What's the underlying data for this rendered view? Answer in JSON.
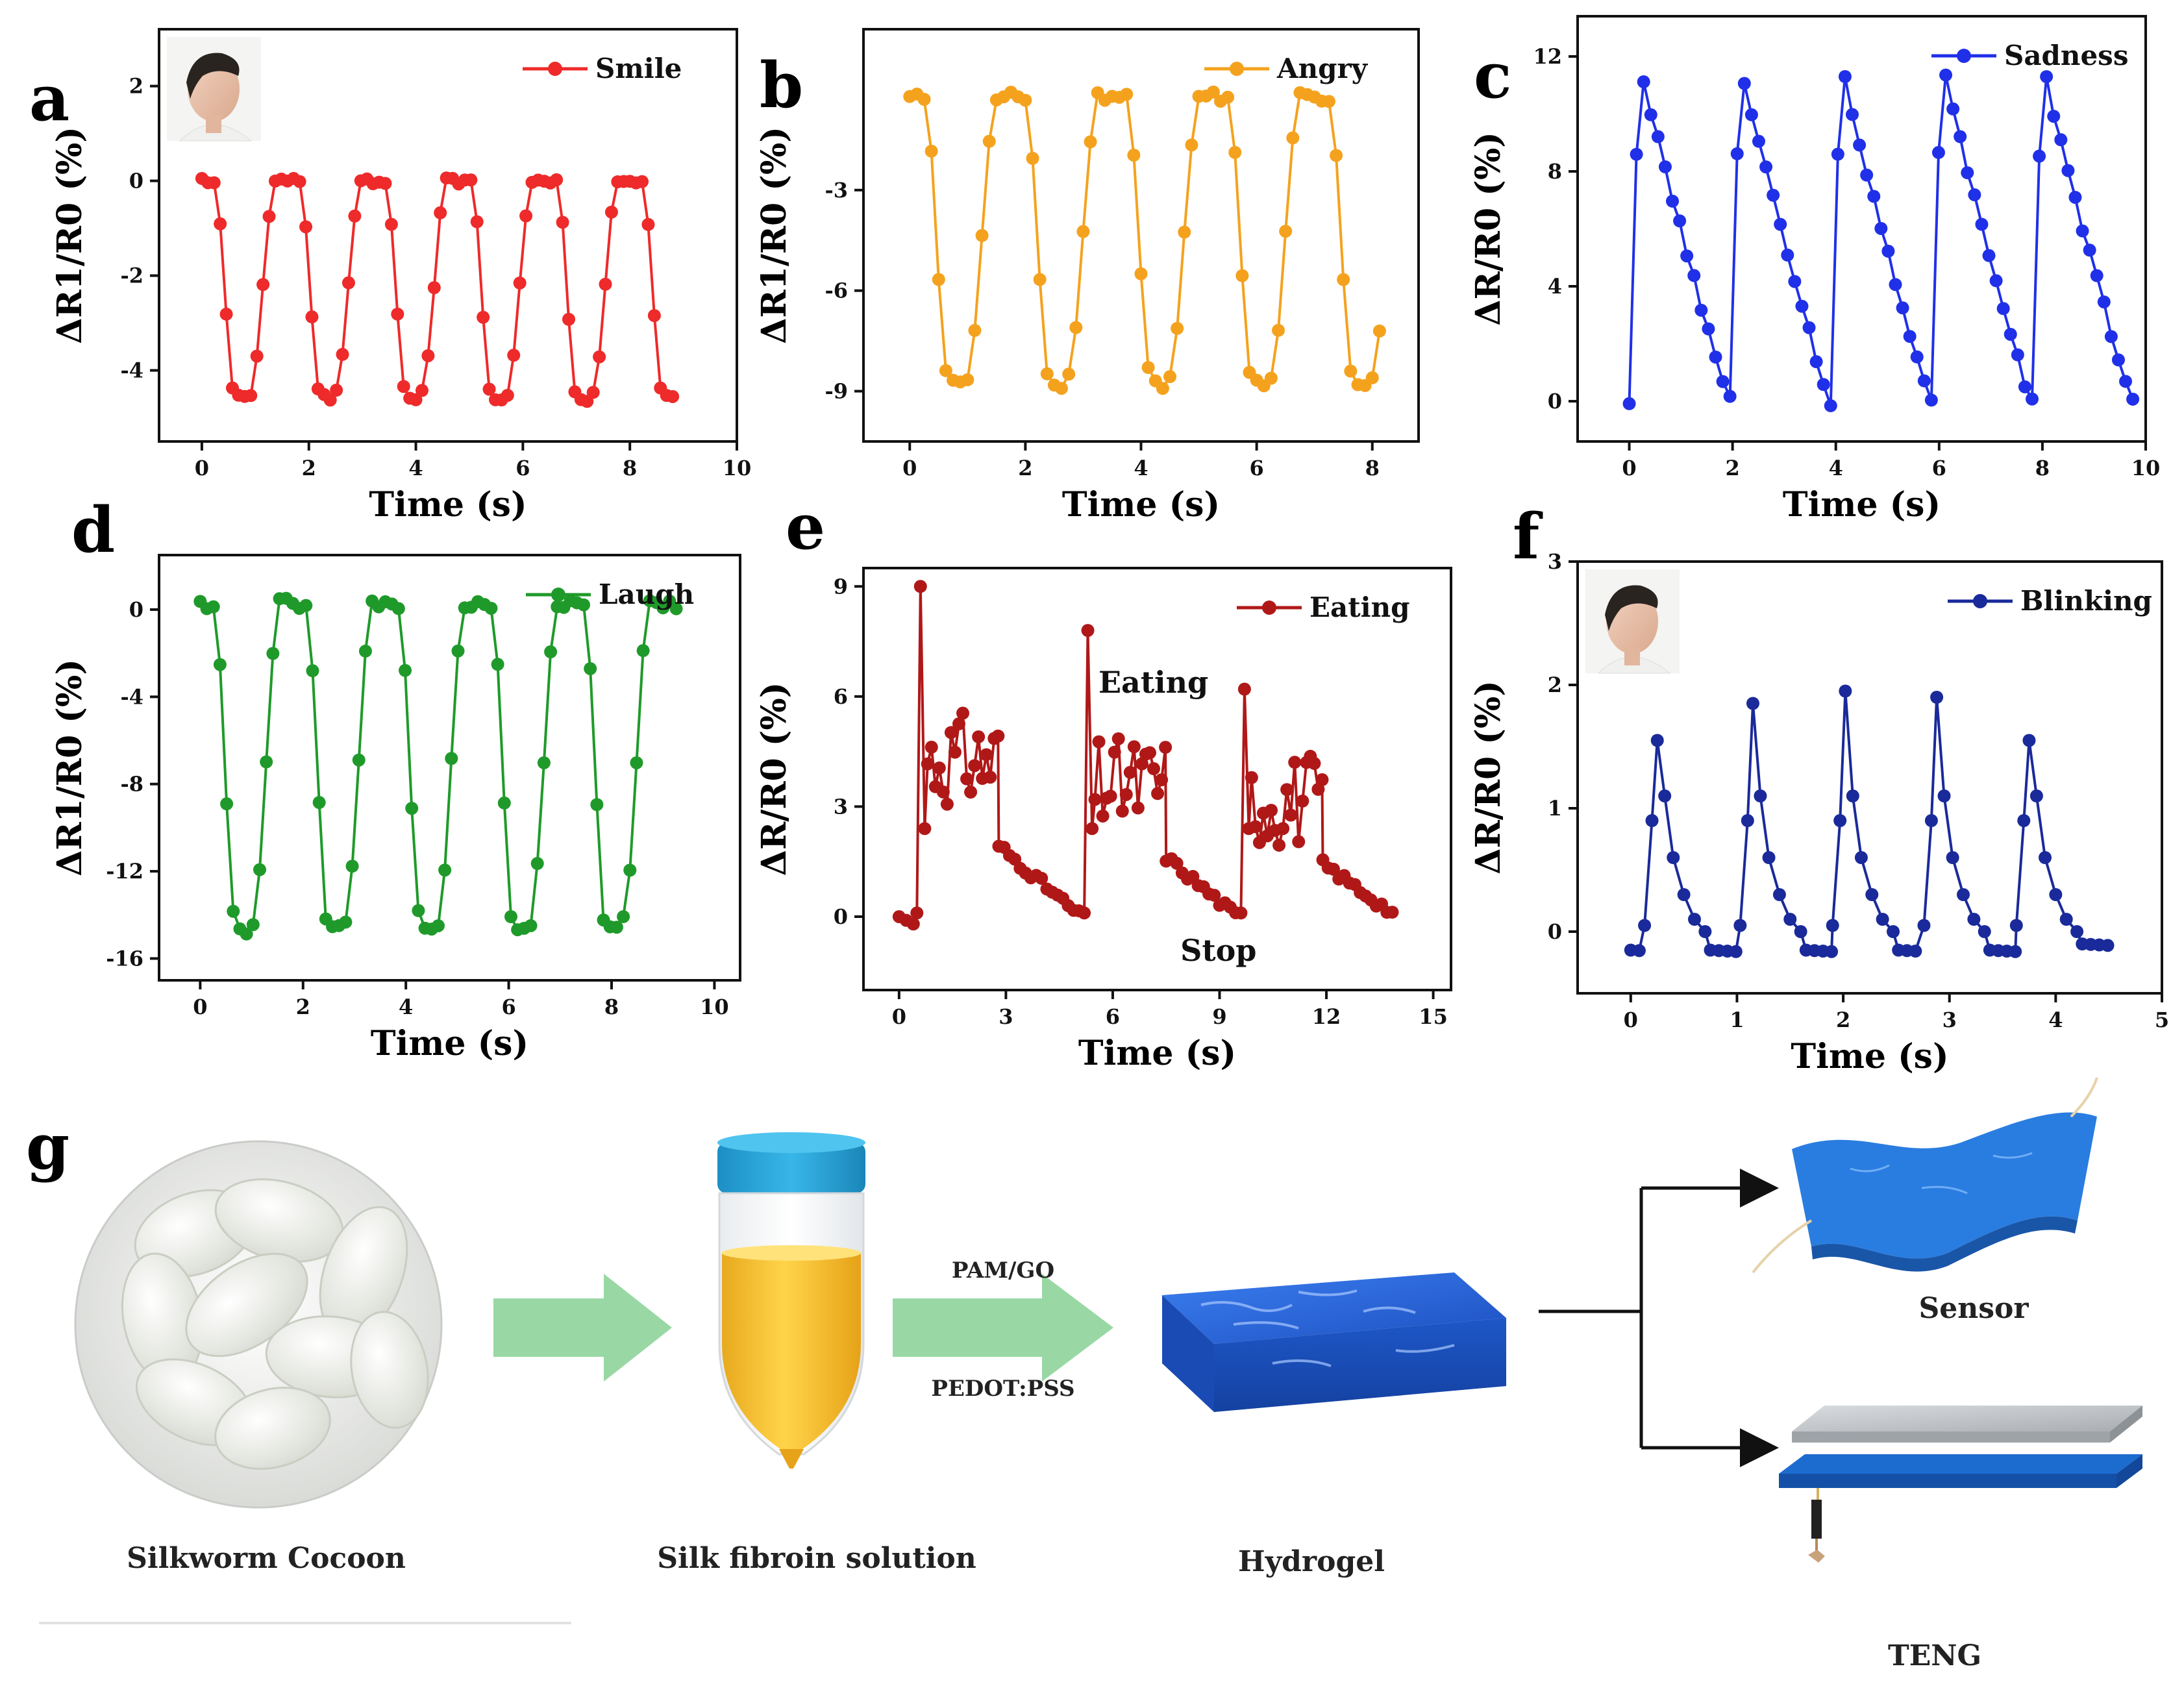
{
  "figure": {
    "panel_g_letter": "g",
    "schematic": {
      "cocoon_label": "Silkworm Cocoon",
      "solution_label": "Silk fibroin solution",
      "hydrogel_label": "Hydrogel",
      "additive_top": "PAM/GO",
      "additive_bottom": "PEDOT:PSS",
      "sensor_label": "Sensor",
      "teng_label": "TENG"
    },
    "colors": {
      "arrow_green": "#8ed49a",
      "cap_blue": "#2aa3d8",
      "solution_yellow": "#f2c230",
      "hydrogel_blue": "#1f5fcf",
      "teng_plate": "#bfc3c7"
    }
  },
  "chart_data": [
    {
      "panel": "a",
      "type": "line",
      "color": "#ee2a2a",
      "legend": "Smile",
      "xlabel": "Time (s)",
      "ylabel": "ΔR1/R0 (%)",
      "xlim": [
        -0.8,
        10
      ],
      "ylim": [
        -5.5,
        3.2
      ],
      "xticks": [
        0,
        2,
        4,
        6,
        8,
        10
      ],
      "yticks": [
        -4,
        -2,
        0,
        2
      ],
      "tick_labels_x": [
        "0",
        "2",
        "4",
        "6",
        "8",
        "10"
      ],
      "tick_labels_y": [
        "-4",
        "-2",
        "0",
        "2"
      ],
      "has_photo": true,
      "cycles": {
        "period": 1.6,
        "count": 5.5,
        "base": 0,
        "amp": -4.6,
        "shape": "trough"
      }
    },
    {
      "panel": "b",
      "type": "line",
      "color": "#f4a21e",
      "legend": "Angry",
      "xlabel": "Time (s)",
      "ylabel": "ΔR1/R0 (%)",
      "xlim": [
        -0.8,
        8.8
      ],
      "ylim": [
        -10.5,
        1.8
      ],
      "xticks": [
        0,
        2,
        4,
        6,
        8
      ],
      "yticks": [
        -9,
        -6,
        -3
      ],
      "tick_labels_x": [
        "0",
        "2",
        "4",
        "6",
        "8"
      ],
      "tick_labels_y": [
        "-9",
        "-6",
        "-3"
      ],
      "has_photo": false,
      "cycles": {
        "period": 1.75,
        "count": 4.7,
        "base": -0.2,
        "amp": -8.6,
        "shape": "trough"
      }
    },
    {
      "panel": "c",
      "type": "line",
      "color": "#2030e8",
      "legend": "Sadness",
      "xlabel": "Time (s)",
      "ylabel": "ΔR/R0 (%)",
      "xlim": [
        -1,
        10
      ],
      "ylim": [
        -1.4,
        13.4
      ],
      "xticks": [
        0,
        2,
        4,
        6,
        8,
        10
      ],
      "yticks": [
        0,
        4,
        8,
        12
      ],
      "tick_labels_x": [
        "0",
        "2",
        "4",
        "6",
        "8",
        "10"
      ],
      "tick_labels_y": [
        "0",
        "4",
        "8",
        "12"
      ],
      "has_photo": false,
      "cycles": {
        "period": 1.95,
        "count": 5,
        "base": 0,
        "amp": 12,
        "shape": "peak"
      }
    },
    {
      "panel": "d",
      "type": "line",
      "color": "#1f9a2a",
      "legend": "Laugh",
      "xlabel": "Time (s)",
      "ylabel": "ΔR1/R0 (%)",
      "xlim": [
        -0.8,
        10.5
      ],
      "ylim": [
        -17,
        2.5
      ],
      "xticks": [
        0,
        2,
        4,
        6,
        8,
        10
      ],
      "yticks": [
        -16,
        -12,
        -8,
        -4,
        0
      ],
      "tick_labels_x": [
        "0",
        "2",
        "4",
        "6",
        "8",
        "10"
      ],
      "tick_labels_y": [
        "-16",
        "-12",
        "-8",
        "-4",
        "0"
      ],
      "has_photo": false,
      "cycles": {
        "period": 1.8,
        "count": 5.2,
        "base": 0.3,
        "amp": -15,
        "shape": "trough"
      }
    },
    {
      "panel": "e",
      "type": "line",
      "color": "#b01818",
      "legend": "Eating",
      "xlabel": "Time (s)",
      "ylabel": "ΔR/R0 (%)",
      "xlim": [
        -1,
        15.5
      ],
      "ylim": [
        -2,
        9.5
      ],
      "xticks": [
        0,
        3,
        6,
        9,
        12,
        15
      ],
      "yticks": [
        0,
        3,
        6,
        9
      ],
      "tick_labels_x": [
        "0",
        "3",
        "6",
        "9",
        "12",
        "15"
      ],
      "tick_labels_y": [
        "0",
        "3",
        "6",
        "9"
      ],
      "has_photo": false,
      "annotations": [
        "Eating",
        "Stop"
      ],
      "segments": [
        {
          "start": 0.5,
          "peak": 9,
          "plateau": 4.3
        },
        {
          "start": 5.2,
          "peak": 7.8,
          "plateau": 3.6
        },
        {
          "start": 9.6,
          "peak": 6.2,
          "plateau": 3.2
        }
      ]
    },
    {
      "panel": "f",
      "type": "line",
      "color": "#1a2a9a",
      "legend": "Blinking",
      "xlabel": "Time (s)",
      "ylabel": "ΔR/R0 (%)",
      "xlim": [
        -0.5,
        5
      ],
      "ylim": [
        -0.5,
        3
      ],
      "xticks": [
        0,
        1,
        2,
        3,
        4,
        5
      ],
      "yticks": [
        0,
        1,
        2,
        3
      ],
      "tick_labels_x": [
        "0",
        "1",
        "2",
        "3",
        "4",
        "5"
      ],
      "tick_labels_y": [
        "0",
        "1",
        "2",
        "3"
      ],
      "has_photo": true,
      "spikes": [
        {
          "t": 0.25,
          "h": 1.55
        },
        {
          "t": 1.15,
          "h": 1.85
        },
        {
          "t": 2.02,
          "h": 1.95
        },
        {
          "t": 2.88,
          "h": 1.9
        },
        {
          "t": 3.75,
          "h": 1.55
        }
      ]
    }
  ]
}
